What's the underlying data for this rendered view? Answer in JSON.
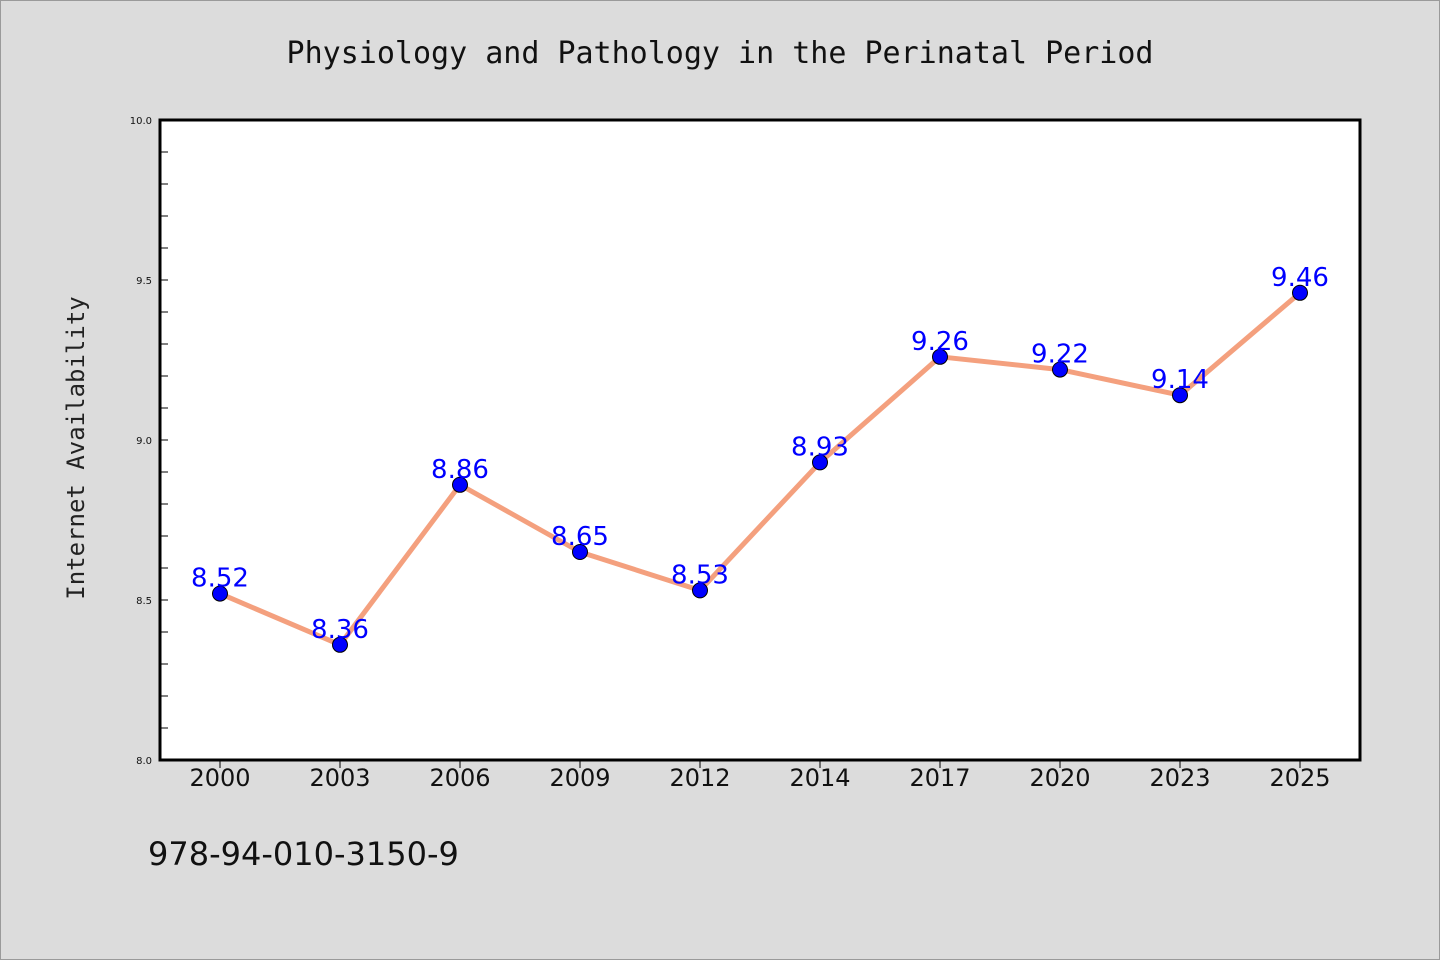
{
  "chart_data": {
    "type": "line",
    "title": "Physiology and Pathology in the Perinatal Period",
    "xlabel": "",
    "ylabel": "Internet Availability",
    "categories": [
      "2000",
      "2003",
      "2006",
      "2009",
      "2012",
      "2014",
      "2017",
      "2020",
      "2023",
      "2025"
    ],
    "series": [
      {
        "values": [
          8.52,
          8.36,
          8.86,
          8.65,
          8.53,
          8.93,
          9.26,
          9.22,
          9.14,
          9.46
        ],
        "labels": [
          "8.52",
          "8.36",
          "8.86",
          "8.65",
          "8.53",
          "8.93",
          "9.26",
          "9.22",
          "9.14",
          "9.46"
        ],
        "line_color": "#f4a07e",
        "marker_color": "#0000ff"
      }
    ],
    "ylim": [
      8.0,
      10.0
    ],
    "yticks": [
      "8.0",
      "8.5",
      "9.0",
      "9.5",
      "10.0"
    ],
    "grid": false,
    "legend": "none",
    "label_color": "#0000ff"
  },
  "footer": {
    "isbn": "978-94-010-3150-9"
  }
}
